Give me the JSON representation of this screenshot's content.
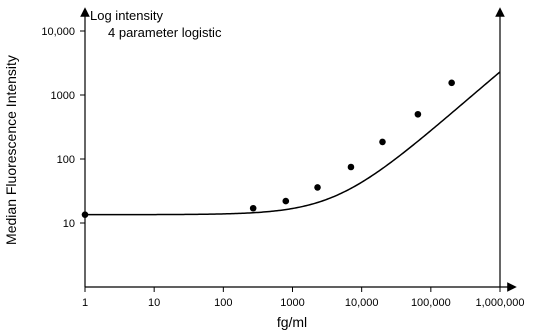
{
  "chart_data": {
    "type": "scatter",
    "title": "",
    "annotations": [
      "Log intensity",
      "4 parameter logistic"
    ],
    "xlabel": "fg/ml",
    "ylabel": "Median Fluorescence Intensity",
    "x_scale": "log",
    "y_scale": "log",
    "xlim": [
      1,
      1000000
    ],
    "ylim": [
      1,
      20000
    ],
    "x_ticks": [
      1,
      10,
      100,
      1000,
      10000,
      100000,
      1000000
    ],
    "x_tick_labels": [
      "1",
      "10",
      "100",
      "1000",
      "10,000",
      "100,000",
      "1,000,000"
    ],
    "y_ticks": [
      10,
      100,
      1000,
      10000
    ],
    "y_tick_labels": [
      "10",
      "100",
      "1000",
      "10,000"
    ],
    "grid": false,
    "legend": "none",
    "series": [
      {
        "kind": "points",
        "x": [
          1,
          270,
          800,
          2300,
          7000,
          20000,
          65000,
          200000
        ],
        "y": [
          13.5,
          17,
          22,
          36,
          75,
          185,
          500,
          1550
        ]
      },
      {
        "kind": "fit-curve",
        "model": "4 parameter logistic",
        "params": {
          "bottom": 13.5,
          "top": 60000,
          "ec50": 30000000,
          "hill": 0.95
        }
      }
    ]
  }
}
